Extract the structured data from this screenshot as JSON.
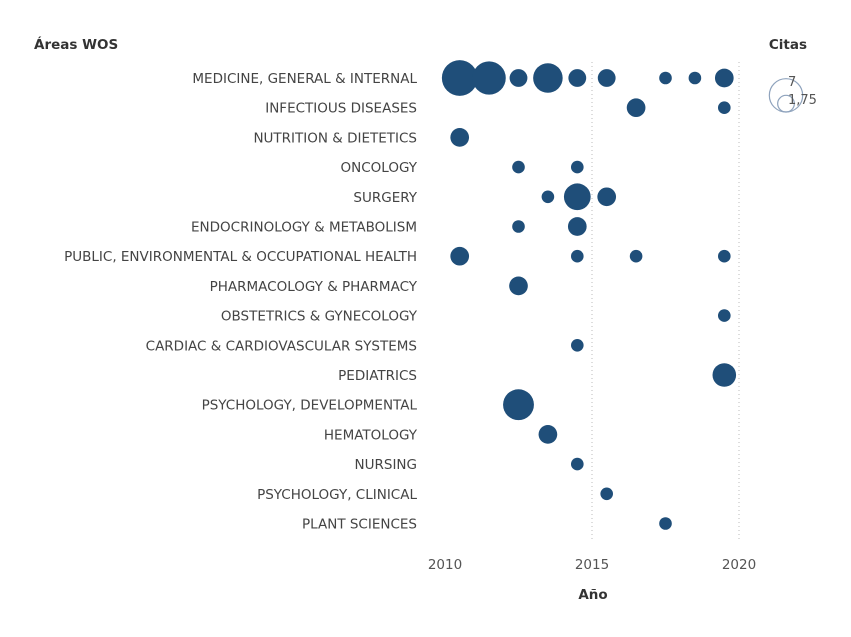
{
  "chart_data": {
    "type": "scatter",
    "subtype": "bubble",
    "row_header": "Áreas WOS",
    "size_header": "Citas",
    "xlabel": "Año",
    "x_ticks": [
      2010,
      2015,
      2020
    ],
    "xlim": [
      2009.5,
      2021.3
    ],
    "grid": "vertical dotted at 2015 and 2020",
    "marker_color": "#1f4e79",
    "categories": [
      "MEDICINE, GENERAL & INTERNAL",
      "INFECTIOUS DISEASES",
      "NUTRITION & DIETETICS",
      "ONCOLOGY",
      "SURGERY",
      "ENDOCRINOLOGY & METABOLISM",
      "PUBLIC, ENVIRONMENTAL & OCCUPATIONAL HEALTH",
      "PHARMACOLOGY & PHARMACY",
      "OBSTETRICS & GYNECOLOGY",
      "CARDIAC & CARDIOVASCULAR SYSTEMS",
      "PEDIATRICS",
      "PSYCHOLOGY, DEVELOPMENTAL",
      "HEMATOLOGY",
      "NURSING",
      "PSYCHOLOGY, CLINICAL",
      "PLANT SCIENCES"
    ],
    "points": [
      {
        "category": "MEDICINE, GENERAL & INTERNAL",
        "x": 2010.5,
        "size": 8
      },
      {
        "category": "MEDICINE, GENERAL & INTERNAL",
        "x": 2011.5,
        "size": 7
      },
      {
        "category": "MEDICINE, GENERAL & INTERNAL",
        "x": 2012.5,
        "size": 2
      },
      {
        "category": "MEDICINE, GENERAL & INTERNAL",
        "x": 2013.5,
        "size": 5.5
      },
      {
        "category": "MEDICINE, GENERAL & INTERNAL",
        "x": 2014.5,
        "size": 2
      },
      {
        "category": "MEDICINE, GENERAL & INTERNAL",
        "x": 2015.5,
        "size": 2
      },
      {
        "category": "MEDICINE, GENERAL & INTERNAL",
        "x": 2017.5,
        "size": 1
      },
      {
        "category": "MEDICINE, GENERAL & INTERNAL",
        "x": 2018.5,
        "size": 1
      },
      {
        "category": "MEDICINE, GENERAL & INTERNAL",
        "x": 2019.5,
        "size": 2.2
      },
      {
        "category": "INFECTIOUS DISEASES",
        "x": 2016.5,
        "size": 2.2
      },
      {
        "category": "INFECTIOUS DISEASES",
        "x": 2019.5,
        "size": 1
      },
      {
        "category": "NUTRITION & DIETETICS",
        "x": 2010.5,
        "size": 2.2
      },
      {
        "category": "ONCOLOGY",
        "x": 2012.5,
        "size": 1
      },
      {
        "category": "ONCOLOGY",
        "x": 2014.5,
        "size": 1
      },
      {
        "category": "SURGERY",
        "x": 2013.5,
        "size": 1
      },
      {
        "category": "SURGERY",
        "x": 2014.5,
        "size": 4.5
      },
      {
        "category": "SURGERY",
        "x": 2015.5,
        "size": 2.2
      },
      {
        "category": "ENDOCRINOLOGY & METABOLISM",
        "x": 2012.5,
        "size": 1
      },
      {
        "category": "ENDOCRINOLOGY & METABOLISM",
        "x": 2014.5,
        "size": 2.2
      },
      {
        "category": "PUBLIC, ENVIRONMENTAL & OCCUPATIONAL HEALTH",
        "x": 2010.5,
        "size": 2.2
      },
      {
        "category": "PUBLIC, ENVIRONMENTAL & OCCUPATIONAL HEALTH",
        "x": 2014.5,
        "size": 1
      },
      {
        "category": "PUBLIC, ENVIRONMENTAL & OCCUPATIONAL HEALTH",
        "x": 2016.5,
        "size": 1
      },
      {
        "category": "PUBLIC, ENVIRONMENTAL & OCCUPATIONAL HEALTH",
        "x": 2019.5,
        "size": 1
      },
      {
        "category": "PHARMACOLOGY & PHARMACY",
        "x": 2012.5,
        "size": 2.2
      },
      {
        "category": "OBSTETRICS & GYNECOLOGY",
        "x": 2019.5,
        "size": 1
      },
      {
        "category": "CARDIAC & CARDIOVASCULAR SYSTEMS",
        "x": 2014.5,
        "size": 1
      },
      {
        "category": "PEDIATRICS",
        "x": 2019.5,
        "size": 3.5
      },
      {
        "category": "PSYCHOLOGY, DEVELOPMENTAL",
        "x": 2012.5,
        "size": 6
      },
      {
        "category": "HEMATOLOGY",
        "x": 2013.5,
        "size": 2.2
      },
      {
        "category": "NURSING",
        "x": 2014.5,
        "size": 1
      },
      {
        "category": "PSYCHOLOGY, CLINICAL",
        "x": 2015.5,
        "size": 1
      },
      {
        "category": "PLANT SCIENCES",
        "x": 2017.5,
        "size": 1
      }
    ],
    "size_legend": [
      {
        "value": 7,
        "label": "7"
      },
      {
        "value": 1.75,
        "label": "1,75"
      }
    ]
  }
}
